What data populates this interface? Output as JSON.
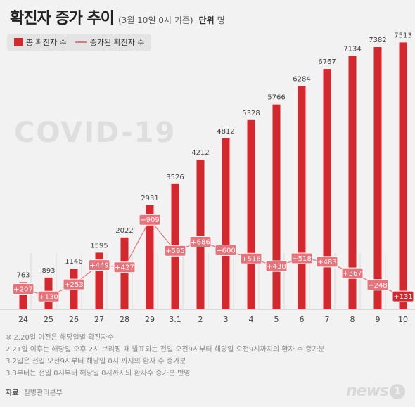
{
  "header": {
    "title": "확진자 증가 추이",
    "subtitle": "(3월 10일 0시 기준)",
    "unit_label": "단위",
    "unit_value": "명"
  },
  "legend": {
    "total_label": "총 확진자 수",
    "increase_label": "증가된 확진자 수"
  },
  "background_text": "COVID-19",
  "colors": {
    "bar": "#d3282e",
    "line": "#e8737a",
    "increase_badge": "#e8737a",
    "last_badge": "#d3282e"
  },
  "chart_data": {
    "type": "bar",
    "categories": [
      "24",
      "25",
      "26",
      "27",
      "28",
      "29",
      "3.1",
      "2",
      "3",
      "4",
      "5",
      "6",
      "7",
      "8",
      "9",
      "10"
    ],
    "series": [
      {
        "name": "총 확진자 수",
        "type": "bar",
        "values": [
          763,
          893,
          1146,
          1595,
          2022,
          2931,
          3526,
          4212,
          4812,
          5328,
          5766,
          6284,
          6767,
          7134,
          7382,
          7513
        ]
      },
      {
        "name": "증가된 확진자 수",
        "type": "line",
        "values": [
          207,
          130,
          253,
          449,
          427,
          909,
          595,
          686,
          600,
          516,
          438,
          518,
          483,
          367,
          248,
          131
        ]
      }
    ],
    "ylim": [
      0,
      7600
    ],
    "grid": false,
    "legend_position": "top-left"
  },
  "notes": [
    "※ 2.20일 이전은 해당일별 확진자수",
    "2.21일 이후는 해당일 오후 2시 브리핑 때 발표되는 전일 오전9시부터 해당일 오전9시까지의 환자 수 증가분",
    "3.2일은 전일 오전9시부터 해당일 0시 까지의 환자 수 증가분",
    "3.3부터는 전일 0시부터 해당일 0시까지의 환자수 증가분 반영"
  ],
  "source": {
    "label": "자료",
    "value": "질병관리본부"
  },
  "logo": {
    "text": "news",
    "mark": "1"
  }
}
